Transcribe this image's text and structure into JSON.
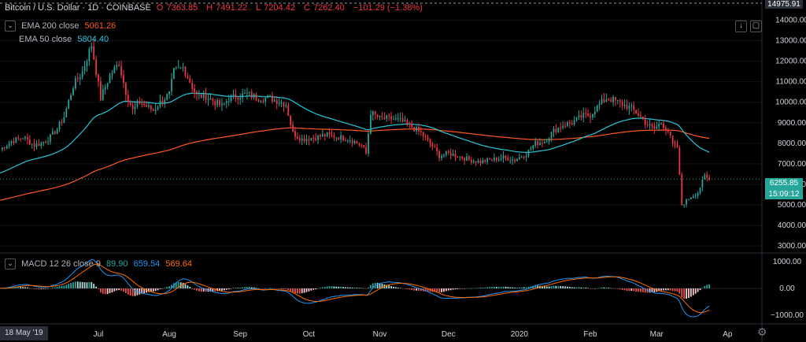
{
  "header": {
    "title": "Bitcoin / U.S. Dollar · 1D · COINBASE",
    "open_label": "O",
    "open": "7363.85",
    "high_label": "H",
    "high": "7491.22",
    "low_label": "L",
    "low": "7204.42",
    "close_label": "C",
    "close": "7262.40",
    "change": "−101.29 (−1.38%)"
  },
  "indicators": {
    "ema200": {
      "label": "EMA 200 close",
      "value": "5061.26",
      "color": "#ff5722"
    },
    "ema50": {
      "label": "EMA 50 close",
      "value": "5804.40",
      "color": "#26c6da"
    },
    "macd": {
      "label": "MACD 12 26 close 9",
      "hist": "89.90",
      "macd": "659.54",
      "signal": "569.64",
      "hist_color": "#26a69a",
      "macd_color": "#2196f3",
      "signal_color": "#ff6d00"
    }
  },
  "price_tags": {
    "last": "6255.85",
    "countdown": "15:09:12",
    "top_partial": "14975.91"
  },
  "date_tag": "18 May '19",
  "chart_data": {
    "type": "candlestick",
    "title": "Bitcoin / U.S. Dollar · 1D · COINBASE",
    "y_ticks": [
      3000,
      4000,
      5000,
      6000,
      7000,
      8000,
      9000,
      10000,
      11000,
      12000,
      13000,
      14000
    ],
    "y_tick_labels": [
      "3000.00",
      "4000.00",
      "5000.00",
      "6000.00",
      "7000.00",
      "8000.00",
      "9000.00",
      "10000.00",
      "11000.00",
      "12000.00",
      "13000.00",
      "14000.00"
    ],
    "ylim": [
      2700,
      14975.91
    ],
    "macd_ticks": [
      1000,
      0,
      -1000
    ],
    "macd_tick_labels": [
      "1000.00",
      "0.00",
      "−1000.00"
    ],
    "macd_ylim": [
      -1300,
      1300
    ],
    "x_labels": [
      "Jul",
      "Aug",
      "Sep",
      "Oct",
      "Nov",
      "Dec",
      "2020",
      "Feb",
      "Mar",
      "Ap"
    ],
    "x_label_days": [
      43,
      74,
      105,
      135,
      166,
      196,
      227,
      258,
      287,
      318
    ],
    "price_anchors": [
      [
        0,
        7700
      ],
      [
        5,
        8100
      ],
      [
        10,
        8300
      ],
      [
        15,
        7900
      ],
      [
        18,
        8000
      ],
      [
        22,
        8300
      ],
      [
        25,
        8700
      ],
      [
        28,
        9300
      ],
      [
        32,
        10800
      ],
      [
        36,
        11500
      ],
      [
        40,
        12800
      ],
      [
        44,
        10200
      ],
      [
        48,
        11300
      ],
      [
        52,
        11900
      ],
      [
        55,
        10500
      ],
      [
        58,
        9600
      ],
      [
        61,
        10000
      ],
      [
        64,
        9800
      ],
      [
        67,
        9600
      ],
      [
        70,
        10000
      ],
      [
        74,
        10400
      ],
      [
        76,
        11500
      ],
      [
        80,
        11700
      ],
      [
        83,
        11000
      ],
      [
        86,
        10300
      ],
      [
        90,
        10300
      ],
      [
        94,
        10000
      ],
      [
        97,
        9800
      ],
      [
        100,
        10200
      ],
      [
        104,
        10300
      ],
      [
        108,
        10400
      ],
      [
        113,
        10200
      ],
      [
        118,
        10200
      ],
      [
        125,
        9900
      ],
      [
        128,
        8500
      ],
      [
        132,
        8200
      ],
      [
        138,
        8300
      ],
      [
        143,
        8400
      ],
      [
        148,
        8300
      ],
      [
        153,
        8200
      ],
      [
        158,
        7900
      ],
      [
        160,
        7500
      ],
      [
        162,
        9500
      ],
      [
        166,
        9200
      ],
      [
        171,
        9200
      ],
      [
        175,
        9100
      ],
      [
        180,
        8800
      ],
      [
        184,
        8500
      ],
      [
        188,
        8000
      ],
      [
        192,
        7400
      ],
      [
        196,
        7500
      ],
      [
        200,
        7400
      ],
      [
        205,
        7200
      ],
      [
        210,
        7100
      ],
      [
        215,
        7200
      ],
      [
        220,
        7300
      ],
      [
        225,
        7200
      ],
      [
        230,
        7500
      ],
      [
        234,
        8000
      ],
      [
        238,
        8100
      ],
      [
        242,
        8600
      ],
      [
        246,
        8900
      ],
      [
        250,
        9000
      ],
      [
        254,
        9300
      ],
      [
        258,
        9400
      ],
      [
        262,
        9900
      ],
      [
        265,
        10200
      ],
      [
        268,
        10100
      ],
      [
        272,
        9900
      ],
      [
        276,
        9700
      ],
      [
        279,
        9400
      ],
      [
        283,
        8900
      ],
      [
        286,
        8700
      ],
      [
        289,
        9000
      ],
      [
        292,
        8600
      ],
      [
        294,
        7900
      ],
      [
        296,
        7800
      ],
      [
        298,
        5000
      ],
      [
        300,
        5200
      ],
      [
        302,
        5400
      ],
      [
        305,
        5600
      ],
      [
        308,
        6400
      ],
      [
        310,
        6200
      ]
    ]
  }
}
